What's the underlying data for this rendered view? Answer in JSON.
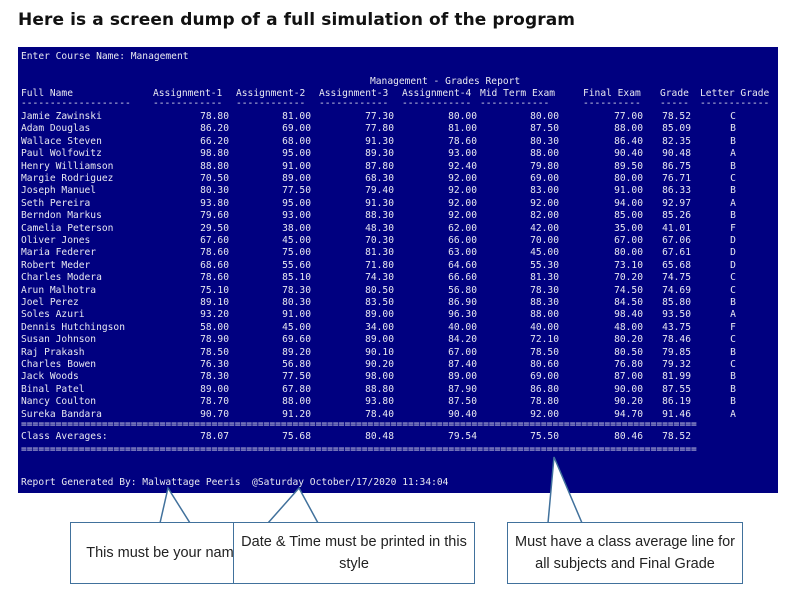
{
  "heading": "Here is a screen dump of a full simulation of the program",
  "console": {
    "prompt_line": "Enter Course Name: Management",
    "report_title": "Management - Grades Report",
    "columns": [
      "Full Name",
      "Assignment-1",
      "Assignment-2",
      "Assignment-3",
      "Assignment-4",
      "Mid Term Exam",
      "Final Exam",
      "Grade",
      "Letter Grade"
    ],
    "header_rules": [
      "-------------------",
      "------------",
      "------------",
      "------------",
      "------------",
      "------------",
      "----------",
      "-----",
      "------------"
    ],
    "rows": [
      [
        "Jamie Zawinski",
        "78.80",
        "81.00",
        "77.30",
        "80.00",
        "80.00",
        "77.00",
        "78.52",
        "C"
      ],
      [
        "Adam Douglas",
        "86.20",
        "69.00",
        "77.80",
        "81.00",
        "87.50",
        "88.00",
        "85.09",
        "B"
      ],
      [
        "Wallace Steven",
        "66.20",
        "68.00",
        "91.30",
        "78.60",
        "80.30",
        "86.40",
        "82.35",
        "B"
      ],
      [
        "Paul Wolfowitz",
        "98.80",
        "95.00",
        "89.30",
        "93.00",
        "88.00",
        "90.40",
        "90.48",
        "A"
      ],
      [
        "Henry Williamson",
        "88.80",
        "91.00",
        "87.80",
        "92.40",
        "79.80",
        "89.50",
        "86.75",
        "B"
      ],
      [
        "Margie Rodriguez",
        "70.50",
        "89.00",
        "68.30",
        "92.00",
        "69.00",
        "80.00",
        "76.71",
        "C"
      ],
      [
        "Joseph Manuel",
        "80.30",
        "77.50",
        "79.40",
        "92.00",
        "83.00",
        "91.00",
        "86.33",
        "B"
      ],
      [
        "Seth Pereira",
        "93.80",
        "95.00",
        "91.30",
        "92.00",
        "92.00",
        "94.00",
        "92.97",
        "A"
      ],
      [
        "Berndon Markus",
        "79.60",
        "93.00",
        "88.30",
        "92.00",
        "82.00",
        "85.00",
        "85.26",
        "B"
      ],
      [
        "Camelia Peterson",
        "29.50",
        "38.00",
        "48.30",
        "62.00",
        "42.00",
        "35.00",
        "41.01",
        "F"
      ],
      [
        "Oliver Jones",
        "67.60",
        "45.00",
        "70.30",
        "66.00",
        "70.00",
        "67.00",
        "67.06",
        "D"
      ],
      [
        "Maria Federer",
        "78.60",
        "75.00",
        "81.30",
        "63.00",
        "45.00",
        "80.00",
        "67.61",
        "D"
      ],
      [
        "Robert Meder",
        "68.60",
        "55.60",
        "71.80",
        "64.60",
        "55.30",
        "73.10",
        "65.68",
        "D"
      ],
      [
        "Charles Modera",
        "78.60",
        "85.10",
        "74.30",
        "66.60",
        "81.30",
        "70.20",
        "74.75",
        "C"
      ],
      [
        "Arun Malhotra",
        "75.10",
        "78.30",
        "80.50",
        "56.80",
        "78.30",
        "74.50",
        "74.69",
        "C"
      ],
      [
        "Joel Perez",
        "89.10",
        "80.30",
        "83.50",
        "86.90",
        "88.30",
        "84.50",
        "85.80",
        "B"
      ],
      [
        "Soles Azuri",
        "93.20",
        "91.00",
        "89.00",
        "96.30",
        "88.00",
        "98.40",
        "93.50",
        "A"
      ],
      [
        "Dennis Hutchingson",
        "58.00",
        "45.00",
        "34.00",
        "40.00",
        "40.00",
        "48.00",
        "43.75",
        "F"
      ],
      [
        "Susan Johnson",
        "78.90",
        "69.60",
        "89.00",
        "84.20",
        "72.10",
        "80.20",
        "78.46",
        "C"
      ],
      [
        "Raj Prakash",
        "78.50",
        "89.20",
        "90.10",
        "67.00",
        "78.50",
        "80.50",
        "79.85",
        "B"
      ],
      [
        "Charles Bowen",
        "76.30",
        "56.80",
        "90.20",
        "87.40",
        "80.60",
        "76.80",
        "79.32",
        "C"
      ],
      [
        "Jack Woods",
        "78.30",
        "77.50",
        "98.00",
        "89.00",
        "69.00",
        "87.00",
        "81.99",
        "B"
      ],
      [
        "Binal Patel",
        "89.00",
        "67.80",
        "88.80",
        "87.90",
        "86.80",
        "90.00",
        "87.55",
        "B"
      ],
      [
        "Nancy Coulton",
        "78.70",
        "88.00",
        "93.80",
        "87.50",
        "78.80",
        "90.20",
        "86.19",
        "B"
      ],
      [
        "Sureka Bandara",
        "90.70",
        "91.20",
        "78.40",
        "90.40",
        "92.00",
        "94.70",
        "91.46",
        "A"
      ]
    ],
    "averages_label": "Class Averages:",
    "averages": [
      "78.07",
      "75.68",
      "80.48",
      "79.54",
      "75.50",
      "80.46",
      "78.52"
    ],
    "footer": "Report Generated By: Malwattage Peeris  @Saturday October/17/2020 11:34:04"
  },
  "callouts": {
    "name": "This must be your name",
    "datetime": "Date & Time must be printed in this style",
    "average": "Must have a class average line for all subjects and Final Grade"
  },
  "colors": {
    "console_bg": "#000080",
    "console_text": "#e8e8f0",
    "callout_border": "#41719c"
  }
}
